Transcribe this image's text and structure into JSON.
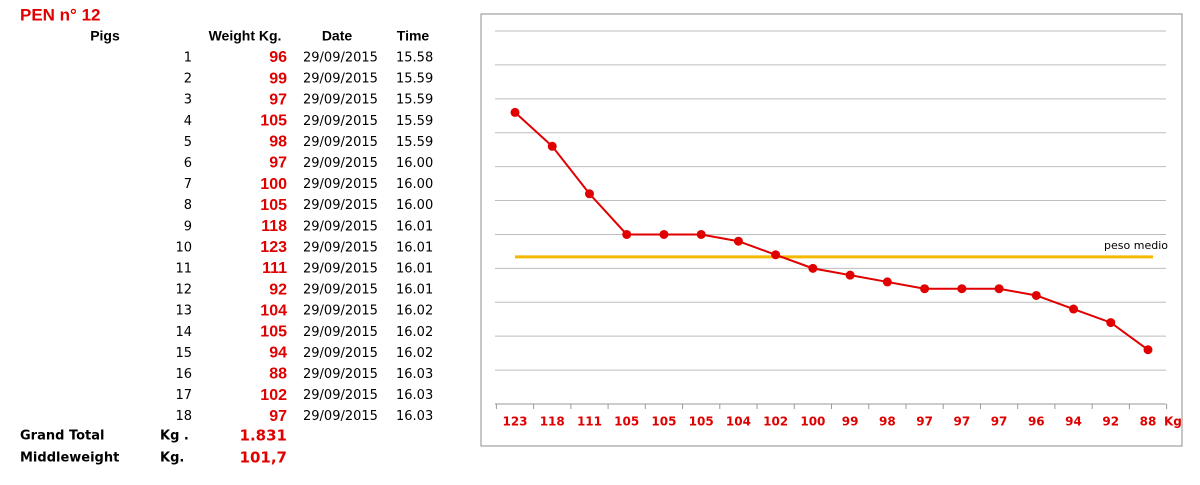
{
  "title": "PEN n° 12",
  "table": {
    "headers": [
      "Pigs",
      "Weight Kg.",
      "Date",
      "Time"
    ],
    "rows": [
      [
        1,
        96,
        "29/09/2015",
        "15.58"
      ],
      [
        2,
        99,
        "29/09/2015",
        "15.59"
      ],
      [
        3,
        97,
        "29/09/2015",
        "15.59"
      ],
      [
        4,
        105,
        "29/09/2015",
        "15.59"
      ],
      [
        5,
        98,
        "29/09/2015",
        "15.59"
      ],
      [
        6,
        97,
        "29/09/2015",
        "16.00"
      ],
      [
        7,
        100,
        "29/09/2015",
        "16.00"
      ],
      [
        8,
        105,
        "29/09/2015",
        "16.00"
      ],
      [
        9,
        118,
        "29/09/2015",
        "16.01"
      ],
      [
        10,
        123,
        "29/09/2015",
        "16.01"
      ],
      [
        11,
        111,
        "29/09/2015",
        "16.01"
      ],
      [
        12,
        92,
        "29/09/2015",
        "16.01"
      ],
      [
        13,
        104,
        "29/09/2015",
        "16.02"
      ],
      [
        14,
        105,
        "29/09/2015",
        "16.02"
      ],
      [
        15,
        94,
        "29/09/2015",
        "16.02"
      ],
      [
        16,
        88,
        "29/09/2015",
        "16.03"
      ],
      [
        17,
        102,
        "29/09/2015",
        "16.03"
      ],
      [
        18,
        97,
        "29/09/2015",
        "16.03"
      ]
    ],
    "totals": [
      [
        "Grand Total",
        "Kg .",
        "1.831"
      ],
      [
        "Middleweight",
        "Kg.",
        "101,7"
      ]
    ]
  },
  "chart_data": {
    "type": "line",
    "categories": [
      "123",
      "118",
      "111",
      "105",
      "105",
      "105",
      "104",
      "102",
      "100",
      "99",
      "98",
      "97",
      "97",
      "97",
      "96",
      "94",
      "92",
      "88"
    ],
    "values": [
      123,
      118,
      111,
      105,
      105,
      105,
      104,
      102,
      100,
      99,
      98,
      97,
      97,
      97,
      96,
      94,
      92,
      88
    ],
    "color": "#e00000",
    "x_unit": "Kg",
    "average": {
      "value": 101.7,
      "label": "peso medio",
      "color": "#f5b800"
    },
    "ylim": [
      80,
      135
    ],
    "yticks": [
      80,
      85,
      90,
      95,
      100,
      105,
      110,
      115,
      120,
      125,
      130,
      135
    ],
    "ytick_labels": false,
    "grid": true
  }
}
